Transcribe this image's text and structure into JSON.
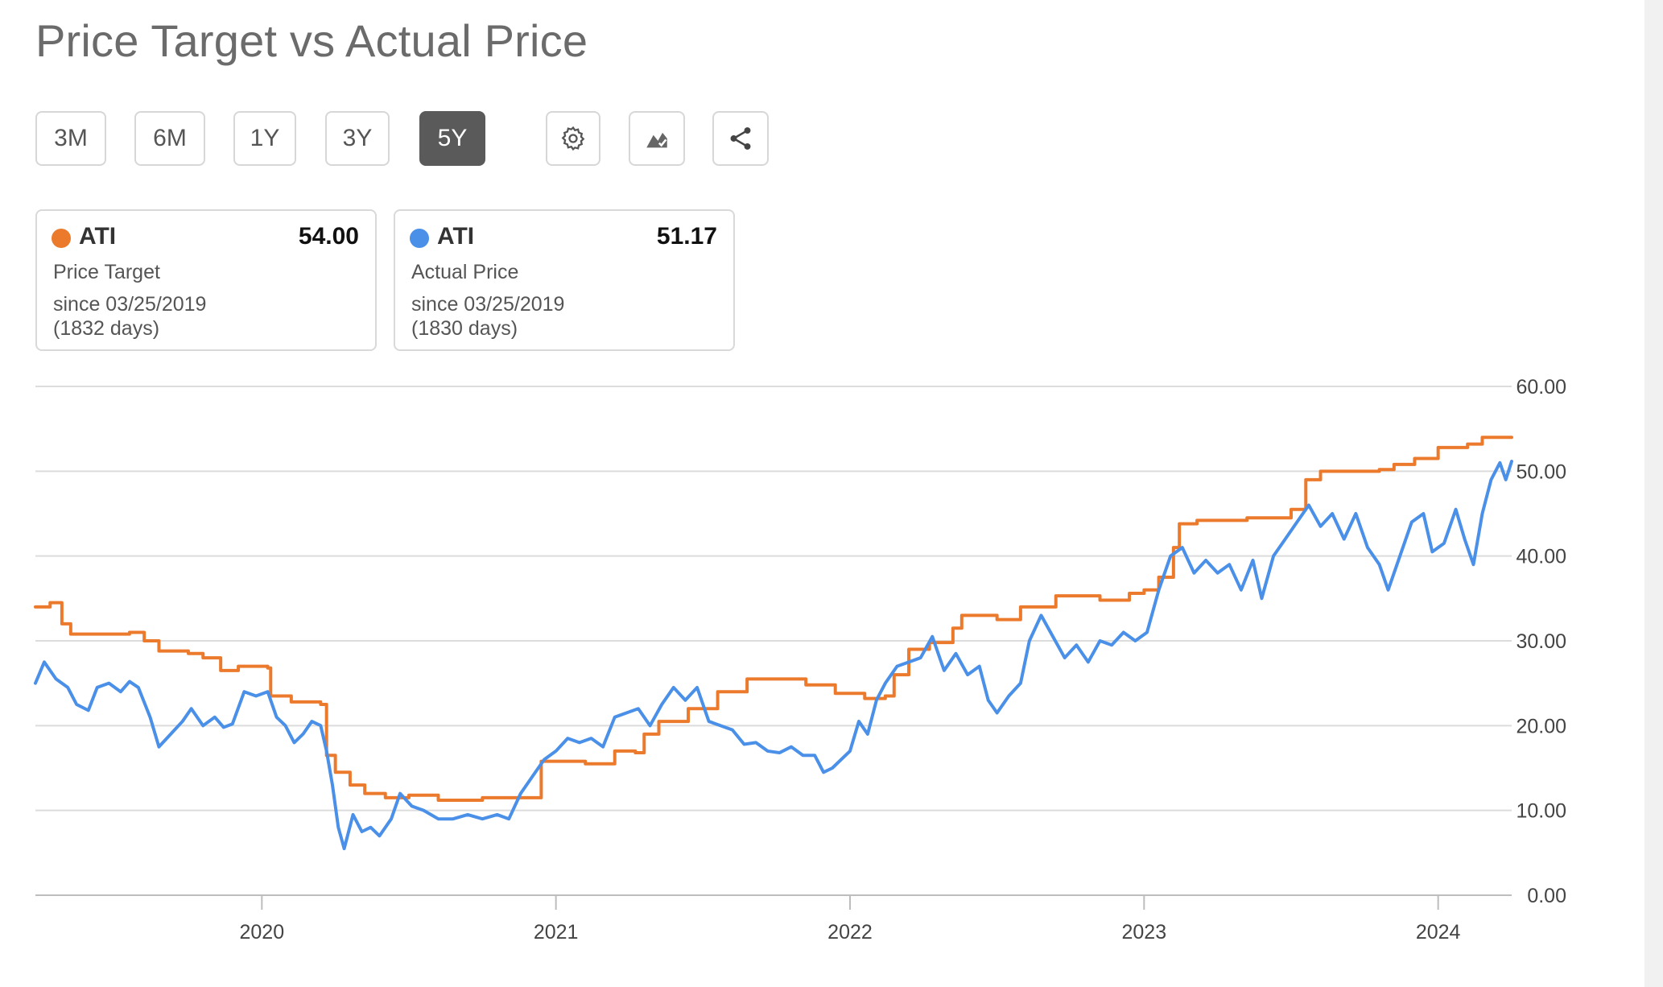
{
  "title": "Price Target vs Actual Price",
  "ranges": [
    {
      "label": "3M",
      "active": false
    },
    {
      "label": "6M",
      "active": false
    },
    {
      "label": "1Y",
      "active": false
    },
    {
      "label": "3Y",
      "active": false
    },
    {
      "label": "5Y",
      "active": true
    }
  ],
  "tools": [
    "gear-icon",
    "chart-type-icon",
    "share-icon"
  ],
  "legend": {
    "target": {
      "ticker": "ATI",
      "value": "54.00",
      "label": "Price Target",
      "since": "since 03/25/2019",
      "days": "(1832 days)",
      "color": "#ec7a2d"
    },
    "actual": {
      "ticker": "ATI",
      "value": "51.17",
      "label": "Actual Price",
      "since": "since 03/25/2019",
      "days": "(1830 days)",
      "color": "#4a90e8"
    }
  },
  "chart_data": {
    "type": "line",
    "title": "Price Target vs Actual Price",
    "xlabel": "",
    "ylabel": "",
    "x_range": [
      2019.23,
      2024.25
    ],
    "ylim": [
      0,
      60
    ],
    "y_ticks": [
      "0.00",
      "10.00",
      "20.00",
      "30.00",
      "40.00",
      "50.00",
      "60.00"
    ],
    "x_ticks": [
      "2020",
      "2021",
      "2022",
      "2023",
      "2024"
    ],
    "grid": true,
    "y_axis_position": "right",
    "series": [
      {
        "name": "Price Target",
        "color": "#ec7a2d",
        "interpolation": "step",
        "points": [
          [
            2019.23,
            34.0
          ],
          [
            2019.28,
            34.5
          ],
          [
            2019.32,
            32.0
          ],
          [
            2019.35,
            30.8
          ],
          [
            2019.55,
            31.0
          ],
          [
            2019.6,
            30.0
          ],
          [
            2019.65,
            28.8
          ],
          [
            2019.75,
            28.5
          ],
          [
            2019.8,
            28.0
          ],
          [
            2019.86,
            26.5
          ],
          [
            2019.92,
            27.0
          ],
          [
            2020.02,
            26.8
          ],
          [
            2020.03,
            23.5
          ],
          [
            2020.1,
            22.8
          ],
          [
            2020.2,
            22.5
          ],
          [
            2020.22,
            16.5
          ],
          [
            2020.25,
            14.5
          ],
          [
            2020.3,
            13.0
          ],
          [
            2020.35,
            12.0
          ],
          [
            2020.42,
            11.5
          ],
          [
            2020.5,
            11.8
          ],
          [
            2020.6,
            11.2
          ],
          [
            2020.75,
            11.5
          ],
          [
            2020.95,
            15.8
          ],
          [
            2021.1,
            15.5
          ],
          [
            2021.2,
            17.0
          ],
          [
            2021.27,
            16.8
          ],
          [
            2021.3,
            19.0
          ],
          [
            2021.35,
            20.5
          ],
          [
            2021.45,
            22.0
          ],
          [
            2021.55,
            24.0
          ],
          [
            2021.65,
            25.5
          ],
          [
            2021.85,
            24.8
          ],
          [
            2021.95,
            23.8
          ],
          [
            2022.05,
            23.2
          ],
          [
            2022.12,
            23.5
          ],
          [
            2022.15,
            26.0
          ],
          [
            2022.2,
            29.0
          ],
          [
            2022.27,
            29.8
          ],
          [
            2022.35,
            31.5
          ],
          [
            2022.38,
            33.0
          ],
          [
            2022.5,
            32.5
          ],
          [
            2022.58,
            34.0
          ],
          [
            2022.7,
            35.3
          ],
          [
            2022.85,
            34.8
          ],
          [
            2022.95,
            35.6
          ],
          [
            2023.0,
            36.0
          ],
          [
            2023.05,
            37.5
          ],
          [
            2023.1,
            41.0
          ],
          [
            2023.12,
            43.8
          ],
          [
            2023.18,
            44.2
          ],
          [
            2023.35,
            44.5
          ],
          [
            2023.5,
            45.5
          ],
          [
            2023.55,
            49.0
          ],
          [
            2023.6,
            50.0
          ],
          [
            2023.8,
            50.2
          ],
          [
            2023.85,
            50.8
          ],
          [
            2023.92,
            51.5
          ],
          [
            2024.0,
            52.8
          ],
          [
            2024.1,
            53.2
          ],
          [
            2024.15,
            54.0
          ],
          [
            2024.25,
            54.0
          ]
        ]
      },
      {
        "name": "Actual Price",
        "color": "#4a90e8",
        "interpolation": "linear",
        "points": [
          [
            2019.23,
            25.0
          ],
          [
            2019.26,
            27.5
          ],
          [
            2019.3,
            25.5
          ],
          [
            2019.34,
            24.5
          ],
          [
            2019.37,
            22.5
          ],
          [
            2019.41,
            21.8
          ],
          [
            2019.44,
            24.5
          ],
          [
            2019.48,
            25.0
          ],
          [
            2019.52,
            24.0
          ],
          [
            2019.55,
            25.2
          ],
          [
            2019.58,
            24.5
          ],
          [
            2019.62,
            21.0
          ],
          [
            2019.65,
            17.5
          ],
          [
            2019.69,
            19.0
          ],
          [
            2019.73,
            20.5
          ],
          [
            2019.76,
            22.0
          ],
          [
            2019.8,
            20.0
          ],
          [
            2019.84,
            21.0
          ],
          [
            2019.87,
            19.8
          ],
          [
            2019.9,
            20.2
          ],
          [
            2019.94,
            24.0
          ],
          [
            2019.98,
            23.5
          ],
          [
            2020.02,
            24.0
          ],
          [
            2020.05,
            21.0
          ],
          [
            2020.08,
            20.0
          ],
          [
            2020.11,
            18.0
          ],
          [
            2020.14,
            19.0
          ],
          [
            2020.17,
            20.5
          ],
          [
            2020.2,
            20.0
          ],
          [
            2020.22,
            17.0
          ],
          [
            2020.24,
            13.0
          ],
          [
            2020.26,
            8.0
          ],
          [
            2020.28,
            5.5
          ],
          [
            2020.31,
            9.5
          ],
          [
            2020.34,
            7.5
          ],
          [
            2020.37,
            8.0
          ],
          [
            2020.4,
            7.0
          ],
          [
            2020.44,
            9.0
          ],
          [
            2020.47,
            12.0
          ],
          [
            2020.51,
            10.5
          ],
          [
            2020.55,
            10.0
          ],
          [
            2020.6,
            9.0
          ],
          [
            2020.65,
            9.0
          ],
          [
            2020.7,
            9.5
          ],
          [
            2020.75,
            9.0
          ],
          [
            2020.8,
            9.5
          ],
          [
            2020.84,
            9.0
          ],
          [
            2020.88,
            12.0
          ],
          [
            2020.92,
            14.0
          ],
          [
            2020.96,
            16.0
          ],
          [
            2021.0,
            17.0
          ],
          [
            2021.04,
            18.5
          ],
          [
            2021.08,
            18.0
          ],
          [
            2021.12,
            18.5
          ],
          [
            2021.16,
            17.5
          ],
          [
            2021.2,
            21.0
          ],
          [
            2021.24,
            21.5
          ],
          [
            2021.28,
            22.0
          ],
          [
            2021.32,
            20.0
          ],
          [
            2021.36,
            22.5
          ],
          [
            2021.4,
            24.5
          ],
          [
            2021.44,
            23.0
          ],
          [
            2021.48,
            24.5
          ],
          [
            2021.52,
            20.5
          ],
          [
            2021.56,
            20.0
          ],
          [
            2021.6,
            19.5
          ],
          [
            2021.64,
            17.8
          ],
          [
            2021.68,
            18.0
          ],
          [
            2021.72,
            17.0
          ],
          [
            2021.76,
            16.8
          ],
          [
            2021.8,
            17.5
          ],
          [
            2021.84,
            16.5
          ],
          [
            2021.88,
            16.5
          ],
          [
            2021.91,
            14.5
          ],
          [
            2021.94,
            15.0
          ],
          [
            2021.97,
            16.0
          ],
          [
            2022.0,
            17.0
          ],
          [
            2022.03,
            20.5
          ],
          [
            2022.06,
            19.0
          ],
          [
            2022.09,
            23.0
          ],
          [
            2022.12,
            25.0
          ],
          [
            2022.16,
            27.0
          ],
          [
            2022.2,
            27.5
          ],
          [
            2022.24,
            28.0
          ],
          [
            2022.28,
            30.5
          ],
          [
            2022.32,
            26.5
          ],
          [
            2022.36,
            28.5
          ],
          [
            2022.4,
            26.0
          ],
          [
            2022.44,
            27.0
          ],
          [
            2022.47,
            23.0
          ],
          [
            2022.5,
            21.5
          ],
          [
            2022.54,
            23.5
          ],
          [
            2022.58,
            25.0
          ],
          [
            2022.61,
            30.0
          ],
          [
            2022.65,
            33.0
          ],
          [
            2022.69,
            30.5
          ],
          [
            2022.73,
            28.0
          ],
          [
            2022.77,
            29.5
          ],
          [
            2022.81,
            27.5
          ],
          [
            2022.85,
            30.0
          ],
          [
            2022.89,
            29.5
          ],
          [
            2022.93,
            31.0
          ],
          [
            2022.97,
            30.0
          ],
          [
            2023.01,
            31.0
          ],
          [
            2023.05,
            36.0
          ],
          [
            2023.09,
            40.0
          ],
          [
            2023.13,
            41.0
          ],
          [
            2023.17,
            38.0
          ],
          [
            2023.21,
            39.5
          ],
          [
            2023.25,
            38.0
          ],
          [
            2023.29,
            39.0
          ],
          [
            2023.33,
            36.0
          ],
          [
            2023.37,
            39.5
          ],
          [
            2023.4,
            35.0
          ],
          [
            2023.44,
            40.0
          ],
          [
            2023.48,
            42.0
          ],
          [
            2023.52,
            44.0
          ],
          [
            2023.56,
            46.0
          ],
          [
            2023.6,
            43.5
          ],
          [
            2023.64,
            45.0
          ],
          [
            2023.68,
            42.0
          ],
          [
            2023.72,
            45.0
          ],
          [
            2023.76,
            41.0
          ],
          [
            2023.8,
            39.0
          ],
          [
            2023.83,
            36.0
          ],
          [
            2023.87,
            40.0
          ],
          [
            2023.91,
            44.0
          ],
          [
            2023.95,
            45.0
          ],
          [
            2023.98,
            40.5
          ],
          [
            2024.02,
            41.5
          ],
          [
            2024.06,
            45.5
          ],
          [
            2024.09,
            42.0
          ],
          [
            2024.12,
            39.0
          ],
          [
            2024.15,
            45.0
          ],
          [
            2024.18,
            49.0
          ],
          [
            2024.21,
            51.0
          ],
          [
            2024.23,
            49.0
          ],
          [
            2024.25,
            51.17
          ]
        ]
      }
    ]
  }
}
